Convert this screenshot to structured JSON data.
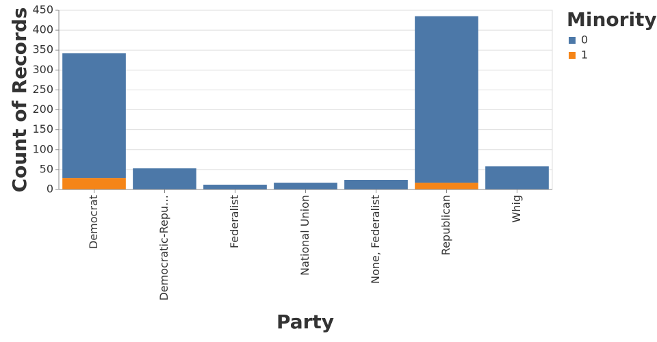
{
  "chart_data": {
    "type": "bar",
    "stacked": true,
    "x_label": "Party",
    "y_label": "Count of Records",
    "legend_title": "Minority",
    "categories": [
      "Democrat",
      "Democratic-Repu…",
      "Federalist",
      "National Union",
      "None, Federalist",
      "Republican",
      "Whig"
    ],
    "series": [
      {
        "name": "0",
        "color": "#4c78a8",
        "values": [
          313,
          53,
          12,
          17,
          24,
          418,
          58
        ]
      },
      {
        "name": "1",
        "color": "#f58518",
        "values": [
          29,
          0,
          0,
          0,
          0,
          17,
          0
        ]
      }
    ],
    "ylim": [
      0,
      450
    ],
    "yticks": [
      0,
      50,
      100,
      150,
      200,
      250,
      300,
      350,
      400,
      450
    ],
    "grid": true,
    "legend_position": "right"
  }
}
